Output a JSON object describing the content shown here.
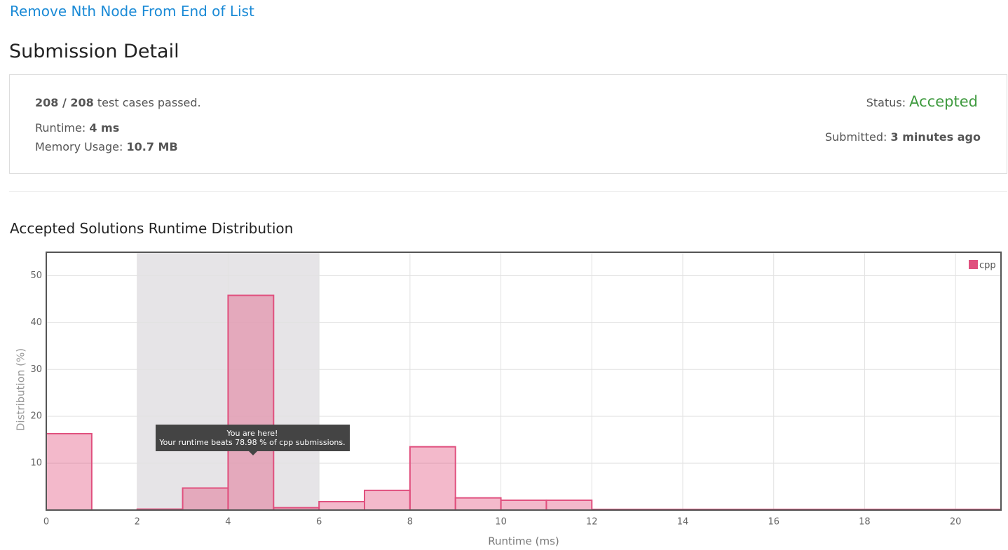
{
  "problem_title": "Remove Nth Node From End of List",
  "heading": "Submission Detail",
  "summary": {
    "passed": "208 / 208",
    "passed_text": "test cases passed.",
    "runtime_label": "Runtime:",
    "runtime": "4 ms",
    "memory_label": "Memory Usage:",
    "memory": "10.7 MB",
    "status_label": "Status:",
    "status": "Accepted",
    "submitted_label": "Submitted:",
    "submitted": "3 minutes ago"
  },
  "chart_data": {
    "type": "histogram",
    "title": "Accepted Solutions Runtime Distribution",
    "xlabel": "Runtime (ms)",
    "ylabel": "Distribution (%)",
    "bins": [
      0,
      1,
      2,
      3,
      4,
      5,
      6,
      7,
      8,
      9,
      10,
      11,
      12
    ],
    "series": [
      {
        "name": "cpp",
        "color": "#e0507e",
        "values": [
          16.3,
          0,
          0.2,
          4.7,
          45.8,
          0.5,
          1.8,
          4.2,
          13.5,
          2.6,
          2.1,
          2.1
        ]
      }
    ],
    "xlim": [
      0,
      21
    ],
    "ylim": [
      0,
      55
    ],
    "xticks": [
      0,
      2,
      4,
      6,
      8,
      10,
      12,
      14,
      16,
      18,
      20
    ],
    "yticks": [
      10,
      20,
      30,
      40,
      50
    ],
    "grid": true,
    "legend": "top-right",
    "highlight_range": [
      2,
      6
    ],
    "tooltip": {
      "title": "You are here!",
      "text": "Your runtime beats 78.98 % of cpp submissions."
    }
  }
}
